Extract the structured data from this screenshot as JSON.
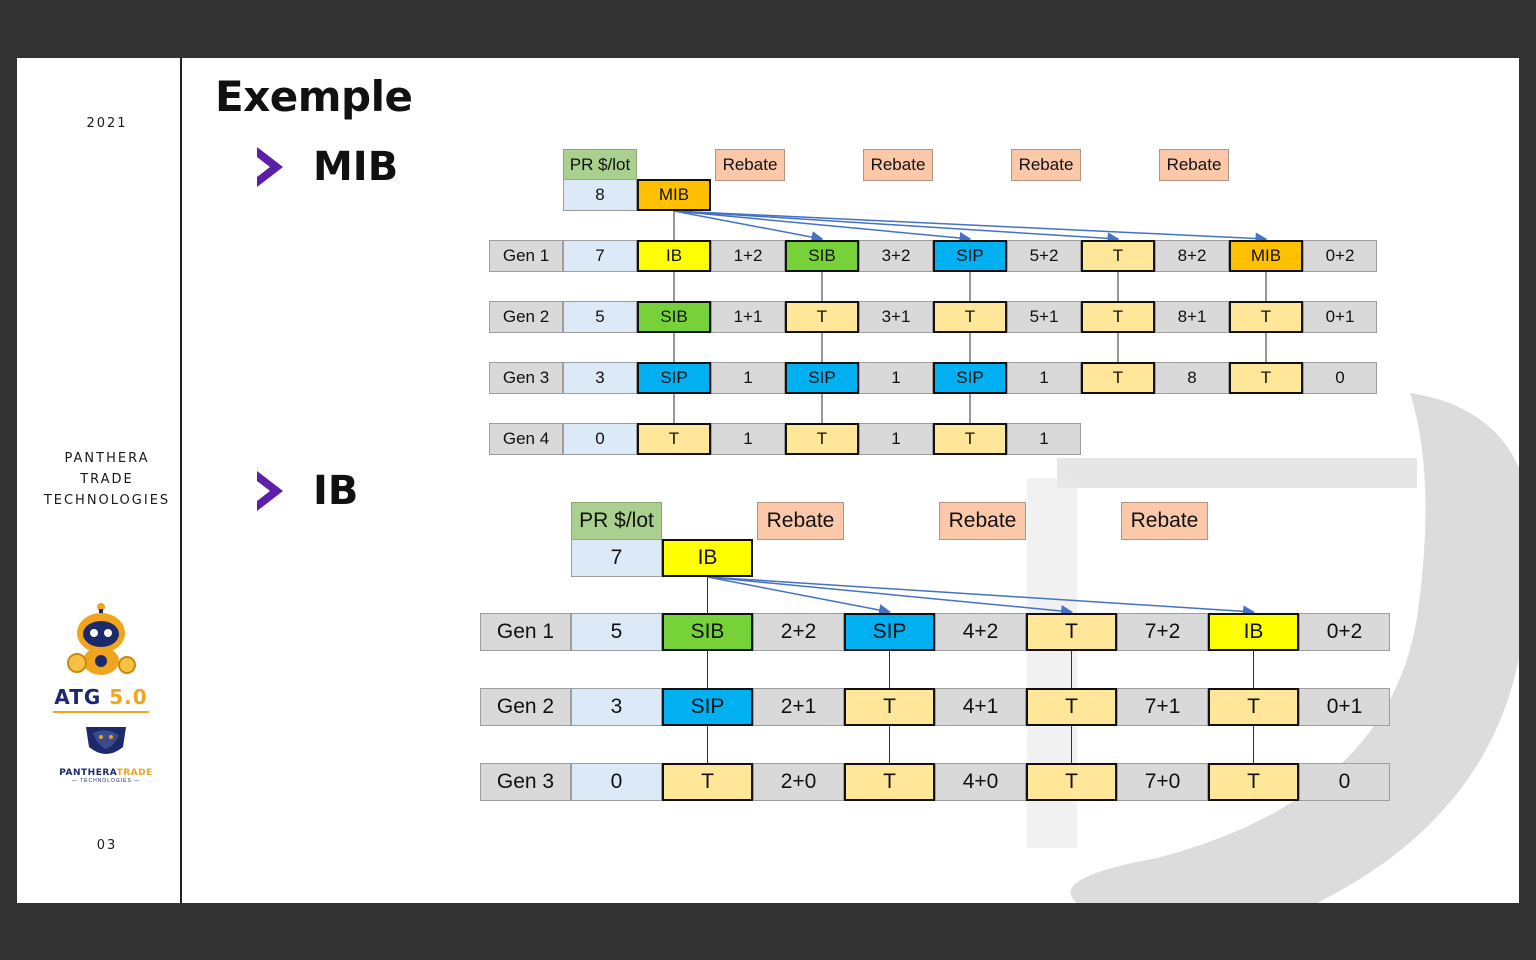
{
  "sidebar": {
    "year": "2021",
    "company_lines": [
      "PANTHERA",
      "TRADE",
      "TECHNOLOGIES"
    ],
    "logo_atg": {
      "main": "ATG",
      "version": "5.0"
    },
    "logo_panthera": {
      "word1": "PANTHERA",
      "word2": "TRADE",
      "sub": "— TECHNOLOGIES —"
    },
    "page_number": "03"
  },
  "title": "Exemple",
  "sections": {
    "mib": "MIB",
    "ib": "IB"
  },
  "diagram_mib": {
    "pr_label": "PR $/lot",
    "pr_value": "8",
    "root_role": "MIB",
    "rebate_label": "Rebate",
    "generations": [
      {
        "label": "Gen 1",
        "pr": "7",
        "cells": [
          {
            "role": "IB",
            "rebate": "1+2"
          },
          {
            "role": "SIB",
            "rebate": "3+2"
          },
          {
            "role": "SIP",
            "rebate": "5+2"
          },
          {
            "role": "T",
            "rebate": "8+2"
          },
          {
            "role": "MIB",
            "rebate": "0+2"
          }
        ]
      },
      {
        "label": "Gen 2",
        "pr": "5",
        "cells": [
          {
            "role": "SIB",
            "rebate": "1+1"
          },
          {
            "role": "T",
            "rebate": "3+1"
          },
          {
            "role": "T",
            "rebate": "5+1"
          },
          {
            "role": "T",
            "rebate": "8+1"
          },
          {
            "role": "T",
            "rebate": "0+1"
          }
        ]
      },
      {
        "label": "Gen 3",
        "pr": "3",
        "cells": [
          {
            "role": "SIP",
            "rebate": "1"
          },
          {
            "role": "SIP",
            "rebate": "1"
          },
          {
            "role": "SIP",
            "rebate": "1"
          },
          {
            "role": "T",
            "rebate": "8"
          },
          {
            "role": "T",
            "rebate": "0"
          }
        ]
      },
      {
        "label": "Gen 4",
        "pr": "0",
        "cells": [
          {
            "role": "T",
            "rebate": "1"
          },
          {
            "role": "T",
            "rebate": "1"
          },
          {
            "role": "T",
            "rebate": "1"
          }
        ]
      }
    ]
  },
  "diagram_ib": {
    "pr_label": "PR $/lot",
    "pr_value": "7",
    "root_role": "IB",
    "rebate_label": "Rebate",
    "generations": [
      {
        "label": "Gen 1",
        "pr": "5",
        "cells": [
          {
            "role": "SIB",
            "rebate": "2+2"
          },
          {
            "role": "SIP",
            "rebate": "4+2"
          },
          {
            "role": "T",
            "rebate": "7+2"
          },
          {
            "role": "IB",
            "rebate": "0+2"
          }
        ]
      },
      {
        "label": "Gen 2",
        "pr": "3",
        "cells": [
          {
            "role": "SIP",
            "rebate": "2+1"
          },
          {
            "role": "T",
            "rebate": "4+1"
          },
          {
            "role": "T",
            "rebate": "7+1"
          },
          {
            "role": "T",
            "rebate": "0+1"
          }
        ]
      },
      {
        "label": "Gen 3",
        "pr": "0",
        "cells": [
          {
            "role": "T",
            "rebate": "2+0"
          },
          {
            "role": "T",
            "rebate": "4+0"
          },
          {
            "role": "T",
            "rebate": "7+0"
          },
          {
            "role": "T",
            "rebate": "0"
          }
        ]
      }
    ]
  },
  "colors": {
    "IB": "#ffff00",
    "SIB": "#77d23a",
    "SIP": "#00b0f0",
    "T": "#ffe699",
    "MIB": "#ffc000",
    "arrow": "#4472c4",
    "accent": "#5b1fa8"
  }
}
